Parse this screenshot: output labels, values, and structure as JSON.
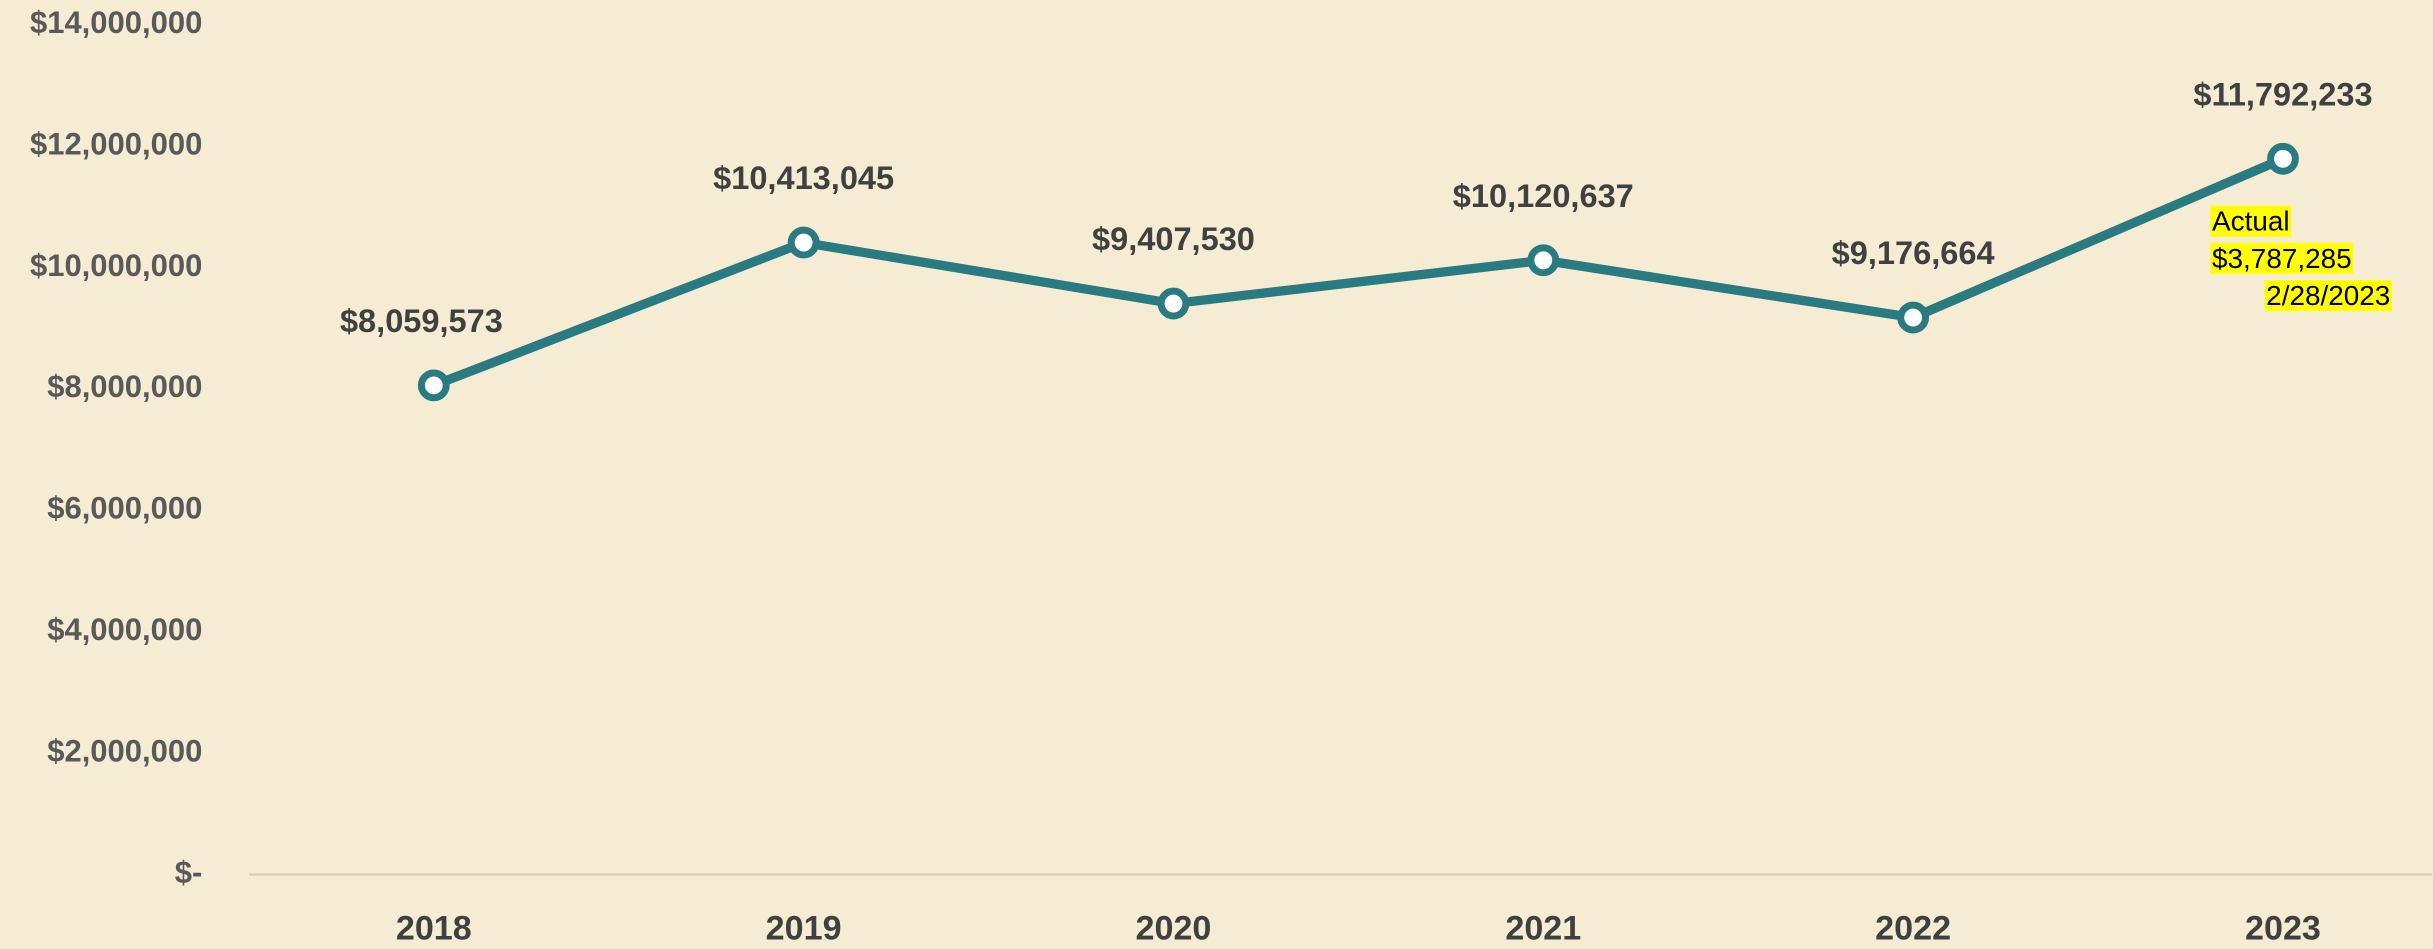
{
  "chart_data": {
    "type": "line",
    "categories": [
      "2018",
      "2019",
      "2020",
      "2021",
      "2022",
      "2023"
    ],
    "series": [
      {
        "color": "#2a7a82",
        "values": [
          8059573,
          10413045,
          9407530,
          10120637,
          9176664,
          11792233
        ],
        "value_labels": [
          "$8,059,573",
          "$10,413,045",
          "$9,407,530",
          "$10,120,637",
          "$9,176,664",
          "$11,792,233"
        ]
      }
    ],
    "ylim": [
      0,
      14000000
    ],
    "yticks": [
      {
        "value": 0,
        "label": "$-"
      },
      {
        "value": 2000000,
        "label": "$2,000,000"
      },
      {
        "value": 4000000,
        "label": "$4,000,000"
      },
      {
        "value": 6000000,
        "label": "$6,000,000"
      },
      {
        "value": 8000000,
        "label": "$8,000,000"
      },
      {
        "value": 10000000,
        "label": "$10,000,000"
      },
      {
        "value": 12000000,
        "label": "$12,000,000"
      },
      {
        "value": 14000000,
        "label": "$14,000,000"
      }
    ],
    "grid": false,
    "annotation": [
      "Actual",
      "$3,787,285",
      "2/28/2023"
    ],
    "annotation_highlight": "#ffff00"
  }
}
